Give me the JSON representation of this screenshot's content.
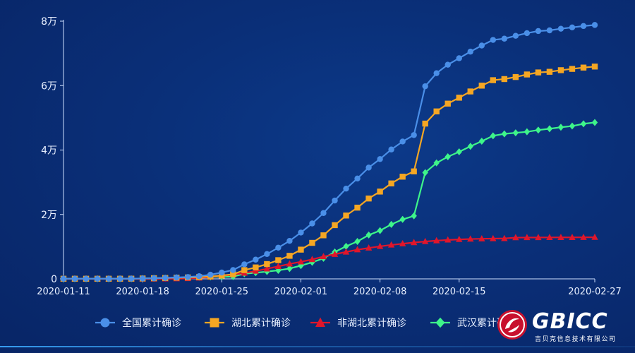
{
  "chart_data": {
    "type": "line",
    "x_tick_labels": [
      "2020-01-11",
      "2020-01-18",
      "2020-01-25",
      "2020-02-01",
      "2020-02-08",
      "2020-02-15",
      "2020-02-27"
    ],
    "y_tick_labels": [
      "0",
      "2万",
      "4万",
      "6万",
      "8万"
    ],
    "ylim": [
      0,
      80000
    ],
    "xlim": [
      "2020-01-11",
      "2020-02-27"
    ],
    "grid": false,
    "legend_position": "bottom",
    "x": [
      "2020-01-11",
      "2020-01-12",
      "2020-01-13",
      "2020-01-14",
      "2020-01-15",
      "2020-01-16",
      "2020-01-17",
      "2020-01-18",
      "2020-01-19",
      "2020-01-20",
      "2020-01-21",
      "2020-01-22",
      "2020-01-23",
      "2020-01-24",
      "2020-01-25",
      "2020-01-26",
      "2020-01-27",
      "2020-01-28",
      "2020-01-29",
      "2020-01-30",
      "2020-01-31",
      "2020-02-01",
      "2020-02-02",
      "2020-02-03",
      "2020-02-04",
      "2020-02-05",
      "2020-02-06",
      "2020-02-07",
      "2020-02-08",
      "2020-02-09",
      "2020-02-10",
      "2020-02-11",
      "2020-02-12",
      "2020-02-13",
      "2020-02-14",
      "2020-02-15",
      "2020-02-16",
      "2020-02-17",
      "2020-02-18",
      "2020-02-19",
      "2020-02-20",
      "2020-02-21",
      "2020-02-22",
      "2020-02-23",
      "2020-02-24",
      "2020-02-25",
      "2020-02-26",
      "2020-02-27"
    ],
    "series": [
      {
        "name": "全国累计确诊",
        "color": "#4a8fe8",
        "marker": "circle",
        "values": [
          41,
          41,
          41,
          41,
          41,
          45,
          62,
          121,
          198,
          291,
          440,
          571,
          830,
          1287,
          1975,
          2744,
          4515,
          5974,
          7711,
          9692,
          11791,
          14380,
          17205,
          20438,
          24324,
          28018,
          31161,
          34546,
          37198,
          40171,
          42638,
          44653,
          59804,
          63851,
          66492,
          68500,
          70548,
          72436,
          74185,
          74576,
          75465,
          76288,
          76936,
          77150,
          77658,
          78064,
          78497,
          78824
        ]
      },
      {
        "name": "湖北累计确诊",
        "color": "#f5a623",
        "marker": "square",
        "values": [
          41,
          41,
          41,
          41,
          41,
          45,
          62,
          121,
          198,
          270,
          375,
          444,
          549,
          729,
          1052,
          1423,
          2714,
          3554,
          4586,
          5806,
          7153,
          9074,
          11177,
          13522,
          16678,
          19665,
          22112,
          24953,
          27100,
          29631,
          31728,
          33366,
          48206,
          51986,
          54406,
          56249,
          58182,
          59989,
          61682,
          62031,
          62662,
          63454,
          64084,
          64287,
          64786,
          65187,
          65596,
          65914
        ]
      },
      {
        "name": "非湖北累计确诊",
        "color": "#e0162b",
        "marker": "triangle",
        "values": [
          0,
          0,
          0,
          0,
          0,
          0,
          0,
          0,
          0,
          21,
          65,
          127,
          281,
          558,
          923,
          1321,
          1801,
          2420,
          3125,
          3886,
          4638,
          5306,
          6028,
          6916,
          7646,
          8353,
          9049,
          9593,
          10098,
          10540,
          10910,
          11287,
          11598,
          11865,
          12086,
          12251,
          12366,
          12447,
          12503,
          12545,
          12803,
          12834,
          12852,
          12863,
          12872,
          12877,
          12901,
          12910
        ]
      },
      {
        "name": "武汉累计确诊",
        "color": "#3ef58a",
        "marker": "diamond",
        "values": [
          41,
          41,
          41,
          41,
          41,
          45,
          62,
          121,
          198,
          258,
          363,
          425,
          495,
          572,
          618,
          698,
          1590,
          1905,
          2261,
          2639,
          3215,
          4109,
          5142,
          6384,
          8351,
          10117,
          11618,
          13603,
          14982,
          16902,
          18454,
          19558,
          32994,
          35991,
          37914,
          39462,
          41152,
          42752,
          44412,
          45027,
          45346,
          45660,
          46201,
          46607,
          47071,
          47441,
          48137,
          48557
        ]
      }
    ]
  },
  "brand": {
    "name": "GBICC",
    "subtitle": "吉贝克信息技术有限公司"
  }
}
